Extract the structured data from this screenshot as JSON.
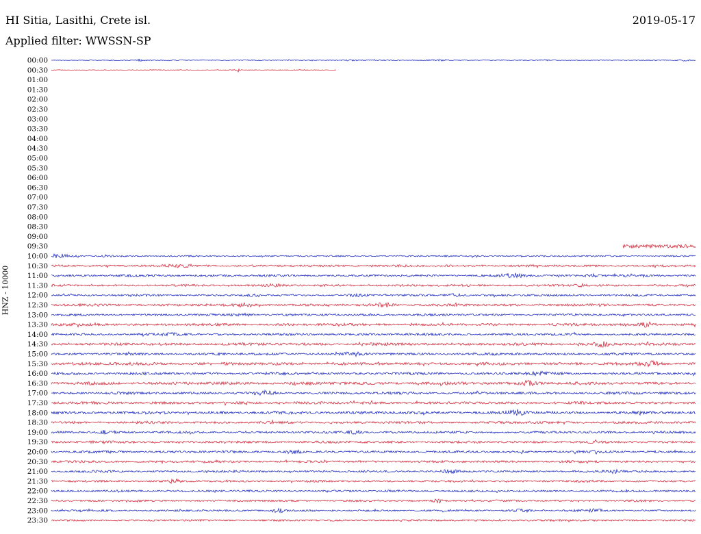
{
  "header": {
    "station_title": "HI Sitia, Lasithi, Crete isl.",
    "date": "2019-05-17",
    "filter_label": "Applied filter: WWSSN-SP"
  },
  "axis": {
    "channel_label": "HNZ - 10000"
  },
  "colors": {
    "blue": "#2330bd",
    "red": "#d22c3e",
    "text": "#000000",
    "background": "#ffffff"
  },
  "chart_data": {
    "type": "line",
    "subtype": "helicorder-seismogram",
    "title": "HI Sitia, Lasithi, Crete isl.",
    "row_duration_minutes": 30,
    "rows_total": 48,
    "legend_position": "none",
    "grid": false,
    "notes": "Rows 01:00 through 09:00 have no data (gap); 00:30 trace stops at 44% of row; 09:30 trace begins at 89% of row. Trace colors alternate blue (:00) and red (:30). amp = baseline noise amplitude in px, events = localized bursts at fractional position p with gain a and gaussian width w.",
    "rows": [
      {
        "time": "00:00",
        "color": "blue",
        "segments": [
          [
            0,
            1
          ]
        ],
        "amp": 0.55,
        "events": [
          {
            "p": 0.138,
            "a": 2.2,
            "w": 0.004
          },
          {
            "p": 0.465,
            "a": 1.2,
            "w": 0.01
          },
          {
            "p": 0.6,
            "a": 1.4,
            "w": 0.012
          },
          {
            "p": 0.765,
            "a": 0.8,
            "w": 0.01
          },
          {
            "p": 0.985,
            "a": 1.6,
            "w": 0.008
          }
        ]
      },
      {
        "time": "00:30",
        "color": "red",
        "segments": [
          [
            0,
            0.442
          ]
        ],
        "amp": 0.5,
        "events": [
          {
            "p": 0.289,
            "a": 2.6,
            "w": 0.004
          }
        ]
      },
      {
        "time": "01:00",
        "color": "blue",
        "segments": [],
        "amp": 0,
        "events": []
      },
      {
        "time": "01:30",
        "color": "red",
        "segments": [],
        "amp": 0,
        "events": []
      },
      {
        "time": "02:00",
        "color": "blue",
        "segments": [],
        "amp": 0,
        "events": []
      },
      {
        "time": "02:30",
        "color": "red",
        "segments": [],
        "amp": 0,
        "events": []
      },
      {
        "time": "03:00",
        "color": "blue",
        "segments": [],
        "amp": 0,
        "events": []
      },
      {
        "time": "03:30",
        "color": "red",
        "segments": [],
        "amp": 0,
        "events": []
      },
      {
        "time": "04:00",
        "color": "blue",
        "segments": [],
        "amp": 0,
        "events": []
      },
      {
        "time": "04:30",
        "color": "red",
        "segments": [],
        "amp": 0,
        "events": []
      },
      {
        "time": "05:00",
        "color": "blue",
        "segments": [],
        "amp": 0,
        "events": []
      },
      {
        "time": "05:30",
        "color": "red",
        "segments": [],
        "amp": 0,
        "events": []
      },
      {
        "time": "06:00",
        "color": "blue",
        "segments": [],
        "amp": 0,
        "events": []
      },
      {
        "time": "06:30",
        "color": "red",
        "segments": [],
        "amp": 0,
        "events": []
      },
      {
        "time": "07:00",
        "color": "blue",
        "segments": [],
        "amp": 0,
        "events": []
      },
      {
        "time": "07:30",
        "color": "red",
        "segments": [],
        "amp": 0,
        "events": []
      },
      {
        "time": "08:00",
        "color": "blue",
        "segments": [],
        "amp": 0,
        "events": []
      },
      {
        "time": "08:30",
        "color": "red",
        "segments": [],
        "amp": 0,
        "events": []
      },
      {
        "time": "09:00",
        "color": "blue",
        "segments": [],
        "amp": 0,
        "events": []
      },
      {
        "time": "09:30",
        "color": "red",
        "segments": [
          [
            0.887,
            1
          ]
        ],
        "amp": 2.4,
        "events": []
      },
      {
        "time": "10:00",
        "color": "blue",
        "segments": [
          [
            0,
            1
          ]
        ],
        "amp": 1.0,
        "events": [
          {
            "p": 0.012,
            "a": 2.2,
            "w": 0.012
          },
          {
            "p": 0.085,
            "a": 1.0,
            "w": 0.008
          }
        ]
      },
      {
        "time": "10:30",
        "color": "red",
        "segments": [
          [
            0,
            1
          ]
        ],
        "amp": 1.35,
        "events": [
          {
            "p": 0.2,
            "a": 0.8,
            "w": 0.02
          }
        ]
      },
      {
        "time": "11:00",
        "color": "blue",
        "segments": [
          [
            0,
            1
          ]
        ],
        "amp": 1.45,
        "events": [
          {
            "p": 0.72,
            "a": 1.8,
            "w": 0.012
          },
          {
            "p": 0.84,
            "a": 1.2,
            "w": 0.008
          }
        ]
      },
      {
        "time": "11:30",
        "color": "red",
        "segments": [
          [
            0,
            1
          ]
        ],
        "amp": 1.35,
        "events": [
          {
            "p": 0.345,
            "a": 1.2,
            "w": 0.01
          },
          {
            "p": 0.82,
            "a": 1.6,
            "w": 0.006
          }
        ]
      },
      {
        "time": "12:00",
        "color": "blue",
        "segments": [
          [
            0,
            1
          ]
        ],
        "amp": 1.25,
        "events": [
          {
            "p": 0.315,
            "a": 1.5,
            "w": 0.008
          },
          {
            "p": 0.475,
            "a": 1.3,
            "w": 0.01
          },
          {
            "p": 0.625,
            "a": 1.4,
            "w": 0.01
          }
        ]
      },
      {
        "time": "12:30",
        "color": "red",
        "segments": [
          [
            0,
            1
          ]
        ],
        "amp": 1.5,
        "events": [
          {
            "p": 0.3,
            "a": 1.2,
            "w": 0.012
          },
          {
            "p": 0.515,
            "a": 1.8,
            "w": 0.01
          }
        ]
      },
      {
        "time": "13:00",
        "color": "blue",
        "segments": [
          [
            0,
            1
          ]
        ],
        "amp": 1.35,
        "events": [
          {
            "p": 0.3,
            "a": 1.0,
            "w": 0.01
          }
        ]
      },
      {
        "time": "13:30",
        "color": "red",
        "segments": [
          [
            0,
            1
          ]
        ],
        "amp": 1.6,
        "events": [
          {
            "p": 0.925,
            "a": 1.8,
            "w": 0.008
          }
        ]
      },
      {
        "time": "14:00",
        "color": "blue",
        "segments": [
          [
            0,
            1
          ]
        ],
        "amp": 1.45,
        "events": [
          {
            "p": 0.185,
            "a": 1.2,
            "w": 0.008
          }
        ]
      },
      {
        "time": "14:30",
        "color": "red",
        "segments": [
          [
            0,
            1
          ]
        ],
        "amp": 1.7,
        "events": [
          {
            "p": 0.855,
            "a": 1.6,
            "w": 0.01
          }
        ]
      },
      {
        "time": "15:00",
        "color": "blue",
        "segments": [
          [
            0,
            1
          ]
        ],
        "amp": 1.5,
        "events": [
          {
            "p": 0.47,
            "a": 1.4,
            "w": 0.01
          }
        ]
      },
      {
        "time": "15:30",
        "color": "red",
        "segments": [
          [
            0,
            1
          ]
        ],
        "amp": 1.8,
        "events": [
          {
            "p": 0.93,
            "a": 1.6,
            "w": 0.01
          }
        ]
      },
      {
        "time": "16:00",
        "color": "blue",
        "segments": [
          [
            0,
            1
          ]
        ],
        "amp": 1.6,
        "events": [
          {
            "p": 0.755,
            "a": 1.2,
            "w": 0.01
          }
        ]
      },
      {
        "time": "16:30",
        "color": "red",
        "segments": [
          [
            0,
            1
          ]
        ],
        "amp": 1.8,
        "events": [
          {
            "p": 0.74,
            "a": 1.5,
            "w": 0.01
          }
        ]
      },
      {
        "time": "17:00",
        "color": "blue",
        "segments": [
          [
            0,
            1
          ]
        ],
        "amp": 1.6,
        "events": [
          {
            "p": 0.33,
            "a": 1.4,
            "w": 0.01
          }
        ]
      },
      {
        "time": "17:30",
        "color": "red",
        "segments": [
          [
            0,
            1
          ]
        ],
        "amp": 1.7,
        "events": []
      },
      {
        "time": "18:00",
        "color": "blue",
        "segments": [
          [
            0,
            1
          ]
        ],
        "amp": 1.8,
        "events": [
          {
            "p": 0.72,
            "a": 1.5,
            "w": 0.012
          }
        ]
      },
      {
        "time": "18:30",
        "color": "red",
        "segments": [
          [
            0,
            1
          ]
        ],
        "amp": 1.55,
        "events": []
      },
      {
        "time": "19:00",
        "color": "blue",
        "segments": [
          [
            0,
            1
          ]
        ],
        "amp": 1.45,
        "events": [
          {
            "p": 0.085,
            "a": 1.8,
            "w": 0.006
          },
          {
            "p": 0.47,
            "a": 1.3,
            "w": 0.01
          }
        ]
      },
      {
        "time": "19:30",
        "color": "red",
        "segments": [
          [
            0,
            1
          ]
        ],
        "amp": 1.5,
        "events": []
      },
      {
        "time": "20:00",
        "color": "blue",
        "segments": [
          [
            0,
            1
          ]
        ],
        "amp": 1.5,
        "events": [
          {
            "p": 0.375,
            "a": 1.4,
            "w": 0.008
          }
        ]
      },
      {
        "time": "20:30",
        "color": "red",
        "segments": [
          [
            0,
            1
          ]
        ],
        "amp": 1.4,
        "events": []
      },
      {
        "time": "21:00",
        "color": "blue",
        "segments": [
          [
            0,
            1
          ]
        ],
        "amp": 1.4,
        "events": [
          {
            "p": 0.62,
            "a": 1.4,
            "w": 0.008
          },
          {
            "p": 0.875,
            "a": 1.5,
            "w": 0.008
          }
        ]
      },
      {
        "time": "21:30",
        "color": "red",
        "segments": [
          [
            0,
            1
          ]
        ],
        "amp": 1.3,
        "events": [
          {
            "p": 0.19,
            "a": 2.0,
            "w": 0.005
          }
        ]
      },
      {
        "time": "22:00",
        "color": "blue",
        "segments": [
          [
            0,
            1
          ]
        ],
        "amp": 1.3,
        "events": []
      },
      {
        "time": "22:30",
        "color": "red",
        "segments": [
          [
            0,
            1
          ]
        ],
        "amp": 1.2,
        "events": [
          {
            "p": 0.6,
            "a": 2.2,
            "w": 0.005
          }
        ]
      },
      {
        "time": "23:00",
        "color": "blue",
        "segments": [
          [
            0,
            1
          ]
        ],
        "amp": 1.2,
        "events": [
          {
            "p": 0.353,
            "a": 2.6,
            "w": 0.008
          },
          {
            "p": 0.73,
            "a": 1.4,
            "w": 0.01
          },
          {
            "p": 0.845,
            "a": 1.4,
            "w": 0.008
          }
        ]
      },
      {
        "time": "23:30",
        "color": "red",
        "segments": [
          [
            0,
            1
          ]
        ],
        "amp": 1.1,
        "events": []
      }
    ]
  }
}
